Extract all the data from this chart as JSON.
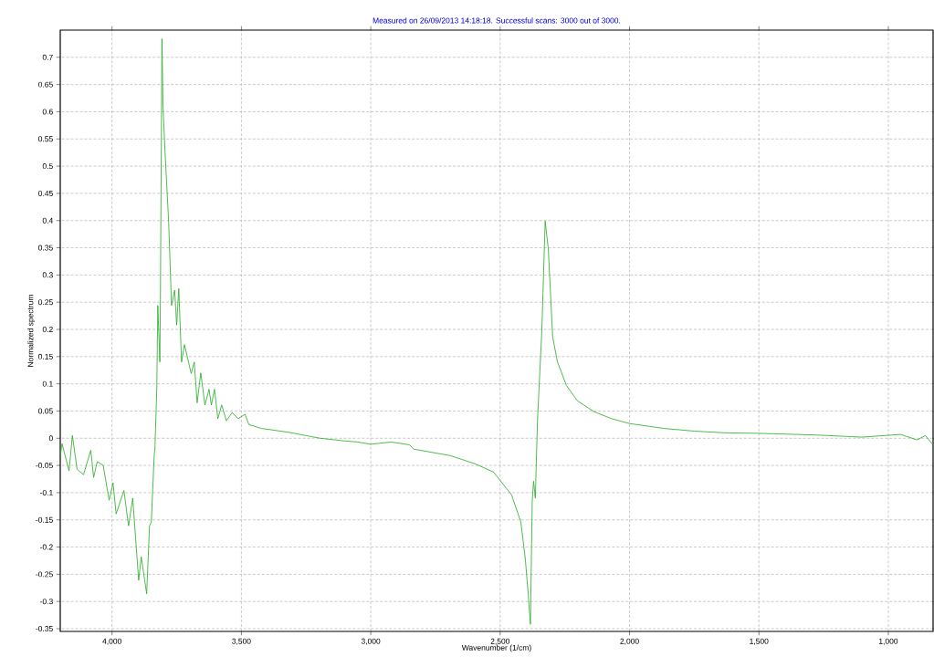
{
  "chart_data": {
    "type": "line",
    "title": "Measured on 26/09/2013 14:18:18. Successful scans: 3000 out of 3000.",
    "xlabel": "Wavenumber (1/cm)",
    "ylabel": "Normalized spectrum",
    "xlim": [
      4200,
      827
    ],
    "ylim": [
      -0.355,
      0.75
    ],
    "xticks": [
      {
        "value": 4000,
        "label": "4,000"
      },
      {
        "value": 3500,
        "label": "3,500"
      },
      {
        "value": 3000,
        "label": "3,000"
      },
      {
        "value": 2500,
        "label": "2,500"
      },
      {
        "value": 2000,
        "label": "2,000"
      },
      {
        "value": 1500,
        "label": "1,500"
      },
      {
        "value": 1000,
        "label": "1,000"
      }
    ],
    "yticks": [
      -0.35,
      -0.3,
      -0.25,
      -0.2,
      -0.15,
      -0.1,
      -0.05,
      0,
      0.05,
      0.1,
      0.15,
      0.2,
      0.25,
      0.3,
      0.35,
      0.4,
      0.45,
      0.5,
      0.55,
      0.6,
      0.65,
      0.7
    ],
    "grid": true,
    "marker": "none",
    "line_style": "solid",
    "series": [
      {
        "color": "#22aa22",
        "x": [
          4200,
          4193,
          4166,
          4153,
          4135,
          4110,
          4082,
          4071,
          4057,
          4034,
          4011,
          3996,
          3984,
          3954,
          3936,
          3920,
          3897,
          3887,
          3866,
          3855,
          3848,
          3837,
          3834,
          3827,
          3823,
          3815,
          3813,
          3807,
          3803,
          3795,
          3781,
          3770,
          3758,
          3750,
          3742,
          3731,
          3720,
          3694,
          3682,
          3671,
          3657,
          3641,
          3625,
          3616,
          3604,
          3591,
          3576,
          3558,
          3536,
          3512,
          3486,
          3471,
          3422,
          3318,
          3196,
          3099,
          3050,
          3001,
          2922,
          2851,
          2834,
          2692,
          2597,
          2526,
          2456,
          2420,
          2403,
          2392,
          2383,
          2376,
          2371,
          2364,
          2356,
          2339,
          2326,
          2314,
          2297,
          2279,
          2244,
          2202,
          2138,
          2070,
          2000,
          1867,
          1749,
          1632,
          1501,
          1279,
          1102,
          953,
          889,
          857,
          827
        ],
        "values": [
          -0.032,
          -0.01,
          -0.06,
          0.005,
          -0.057,
          -0.067,
          -0.022,
          -0.072,
          -0.043,
          -0.05,
          -0.114,
          -0.082,
          -0.139,
          -0.096,
          -0.161,
          -0.11,
          -0.261,
          -0.218,
          -0.286,
          -0.161,
          -0.154,
          -0.032,
          -0.018,
          0.09,
          0.244,
          0.14,
          0.255,
          0.734,
          0.612,
          0.526,
          0.397,
          0.244,
          0.272,
          0.208,
          0.275,
          0.14,
          0.172,
          0.119,
          0.14,
          0.065,
          0.12,
          0.061,
          0.09,
          0.061,
          0.09,
          0.036,
          0.061,
          0.032,
          0.047,
          0.036,
          0.044,
          0.025,
          0.018,
          0.011,
          0.0,
          -0.005,
          -0.007,
          -0.011,
          -0.007,
          -0.012,
          -0.02,
          -0.032,
          -0.047,
          -0.062,
          -0.104,
          -0.154,
          -0.221,
          -0.283,
          -0.342,
          -0.116,
          -0.079,
          -0.11,
          0.03,
          0.198,
          0.399,
          0.348,
          0.186,
          0.141,
          0.097,
          0.069,
          0.049,
          0.036,
          0.027,
          0.018,
          0.013,
          0.01,
          0.009,
          0.006,
          0.002,
          0.007,
          -0.003,
          0.005,
          -0.012
        ]
      }
    ]
  }
}
